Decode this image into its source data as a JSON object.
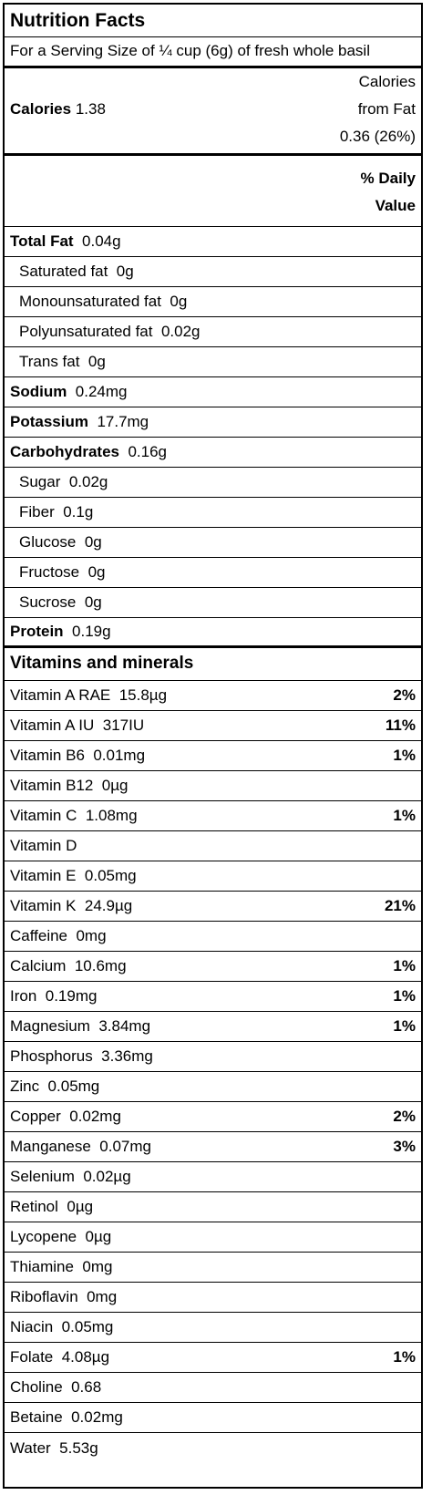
{
  "title": "Nutrition Facts",
  "serving": "For a Serving Size of ¼ cup (6g) of fresh whole basil",
  "calories": {
    "label": "Calories",
    "value": "1.38",
    "fat_line1": "Calories",
    "fat_line2": "from Fat",
    "fat_value": "0.36 (26%)"
  },
  "daily_value_header": {
    "line1": "% Daily",
    "line2": "Value"
  },
  "macros": [
    {
      "name": "Total Fat",
      "amount": "0.04g",
      "bold": true
    },
    {
      "name": "Saturated fat",
      "amount": "0g",
      "bold": false
    },
    {
      "name": "Monounsaturated fat",
      "amount": "0g",
      "bold": false
    },
    {
      "name": "Polyunsaturated fat",
      "amount": "0.02g",
      "bold": false
    },
    {
      "name": "Trans fat",
      "amount": "0g",
      "bold": false
    },
    {
      "name": "Sodium",
      "amount": "0.24mg",
      "bold": true
    },
    {
      "name": "Potassium",
      "amount": "17.7mg",
      "bold": true
    },
    {
      "name": "Carbohydrates",
      "amount": "0.16g",
      "bold": true
    },
    {
      "name": "Sugar",
      "amount": "0.02g",
      "bold": false
    },
    {
      "name": "Fiber",
      "amount": "0.1g",
      "bold": false
    },
    {
      "name": "Glucose",
      "amount": "0g",
      "bold": false
    },
    {
      "name": "Fructose",
      "amount": "0g",
      "bold": false
    },
    {
      "name": "Sucrose",
      "amount": "0g",
      "bold": false
    },
    {
      "name": "Protein",
      "amount": "0.19g",
      "bold": true
    }
  ],
  "vitamins_header": "Vitamins and minerals",
  "vitamins": [
    {
      "label": "Vitamin A RAE  15.8µg",
      "pct": "2%"
    },
    {
      "label": "Vitamin A IU  317IU",
      "pct": "11%"
    },
    {
      "label": "Vitamin B6  0.01mg",
      "pct": "1%"
    },
    {
      "label": "Vitamin B12  0µg",
      "pct": ""
    },
    {
      "label": "Vitamin C  1.08mg",
      "pct": "1%"
    },
    {
      "label": "Vitamin D",
      "pct": ""
    },
    {
      "label": "Vitamin E  0.05mg",
      "pct": ""
    },
    {
      "label": "Vitamin K  24.9µg",
      "pct": "21%"
    },
    {
      "label": "Caffeine  0mg",
      "pct": ""
    },
    {
      "label": "Calcium  10.6mg",
      "pct": "1%"
    },
    {
      "label": "Iron  0.19mg",
      "pct": "1%"
    },
    {
      "label": "Magnesium  3.84mg",
      "pct": "1%"
    },
    {
      "label": "Phosphorus  3.36mg",
      "pct": ""
    },
    {
      "label": "Zinc  0.05mg",
      "pct": ""
    },
    {
      "label": "Copper  0.02mg",
      "pct": "2%"
    },
    {
      "label": "Manganese  0.07mg",
      "pct": "3%"
    },
    {
      "label": "Selenium  0.02µg",
      "pct": ""
    },
    {
      "label": "Retinol  0µg",
      "pct": ""
    },
    {
      "label": "Lycopene  0µg",
      "pct": ""
    },
    {
      "label": "Thiamine  0mg",
      "pct": ""
    },
    {
      "label": "Riboflavin  0mg",
      "pct": ""
    },
    {
      "label": "Niacin  0.05mg",
      "pct": ""
    },
    {
      "label": "Folate  4.08µg",
      "pct": "1%"
    },
    {
      "label": "Choline  0.68",
      "pct": ""
    },
    {
      "label": "Betaine  0.02mg",
      "pct": ""
    },
    {
      "label": "Water  5.53g",
      "pct": ""
    }
  ]
}
